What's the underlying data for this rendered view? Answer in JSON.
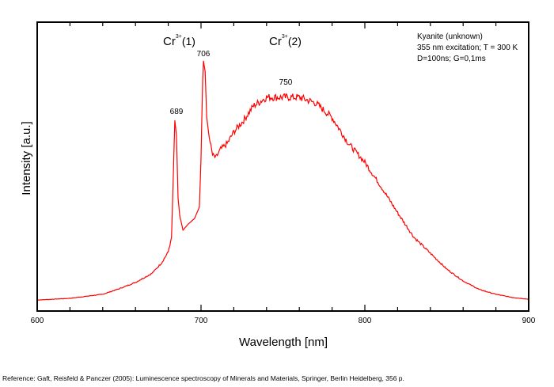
{
  "chart_data": {
    "type": "line",
    "title": "",
    "xlabel": "Wavelength [nm]",
    "ylabel": "Intensity [a.u.]",
    "xlim": [
      600,
      900
    ],
    "ylim": [
      0,
      1
    ],
    "x_ticks": [
      "600",
      "700",
      "800",
      "900"
    ],
    "x_minor_step": 20,
    "y_ticks": [],
    "grid": false,
    "line_color": "#ff0000",
    "series": [
      {
        "x": [
          600,
          620,
          640,
          650,
          660,
          670,
          676,
          680,
          682,
          683,
          684,
          685,
          686,
          687,
          689,
          692,
          696,
          699,
          700,
          701,
          701.5,
          702.5,
          703.5,
          705,
          707,
          709,
          712,
          716,
          720,
          726,
          732,
          740,
          750,
          760,
          770,
          780,
          790,
          800,
          810,
          820,
          830,
          840,
          850,
          860,
          870,
          880,
          890,
          900
        ],
        "y": [
          0.038,
          0.044,
          0.058,
          0.077,
          0.099,
          0.13,
          0.167,
          0.205,
          0.255,
          0.45,
          0.66,
          0.61,
          0.39,
          0.33,
          0.28,
          0.3,
          0.32,
          0.36,
          0.53,
          0.8,
          0.866,
          0.83,
          0.67,
          0.6,
          0.54,
          0.53,
          0.56,
          0.58,
          0.62,
          0.66,
          0.71,
          0.74,
          0.74,
          0.74,
          0.72,
          0.67,
          0.58,
          0.515,
          0.43,
          0.34,
          0.255,
          0.2,
          0.145,
          0.104,
          0.074,
          0.058,
          0.047,
          0.041
        ]
      }
    ],
    "annotations": {
      "band1": {
        "base": "Cr",
        "sup": "3+",
        "suffix": "(1)"
      },
      "band2": {
        "base": "Cr",
        "sup": "3+",
        "suffix": "(2)"
      },
      "peak_689": "689",
      "peak_706": "706",
      "peak_750": "750"
    },
    "legend_text": [
      "Kyanite (unknown)",
      "355 nm excitation; T = 300 K",
      "D=100ns; G=0,1ms"
    ]
  },
  "reference": "Reference: Gaft, Reisfeld & Panczer (2005): Luminescence spectroscopy of Minerals and Materials, Springer, Berlin Heidelberg, 356 p."
}
